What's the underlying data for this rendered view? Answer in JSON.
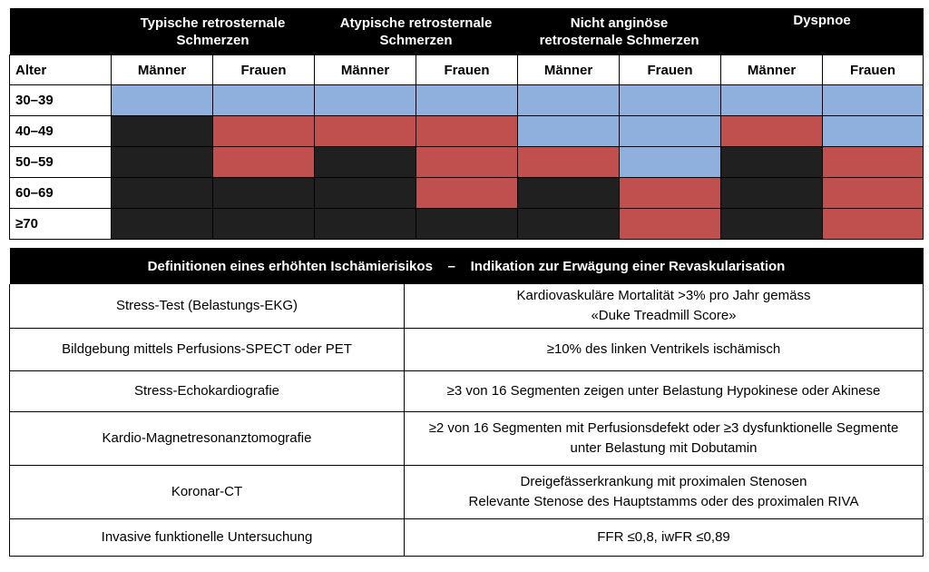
{
  "matrix": {
    "columns": [
      {
        "label_line1": "Typische retrosternale",
        "label_line2": "Schmerzen"
      },
      {
        "label_line1": "Atypische retrosternale",
        "label_line2": "Schmerzen"
      },
      {
        "label_line1": "Nicht anginöse",
        "label_line2": "retrosternale Schmerzen"
      },
      {
        "label_line1": "Dyspnoe",
        "label_line2": ""
      }
    ],
    "age_header": "Alter",
    "sex_labels": [
      "Männer",
      "Frauen",
      "Männer",
      "Frauen",
      "Männer",
      "Frauen",
      "Männer",
      "Frauen"
    ],
    "rows": [
      {
        "age": "30–39",
        "cells": [
          "blue",
          "blue",
          "blue",
          "blue",
          "blue",
          "blue",
          "blue",
          "blue"
        ]
      },
      {
        "age": "40–49",
        "cells": [
          "black",
          "red",
          "red",
          "red",
          "blue",
          "blue",
          "red",
          "blue"
        ]
      },
      {
        "age": "50–59",
        "cells": [
          "black",
          "red",
          "black",
          "red",
          "red",
          "blue",
          "black",
          "red"
        ]
      },
      {
        "age": "60–69",
        "cells": [
          "black",
          "black",
          "black",
          "red",
          "black",
          "red",
          "black",
          "red"
        ]
      },
      {
        "age": "≥70",
        "cells": [
          "black",
          "black",
          "black",
          "black",
          "black",
          "red",
          "black",
          "red"
        ]
      }
    ],
    "colors": {
      "blue": "#8fb0dd",
      "red": "#c0504d",
      "black": "#202020"
    }
  },
  "definitions": {
    "header": "Definitionen eines erhöhten Ischämierisikos    –    Indikation zur Erwägung einer Revaskularisation",
    "rows": [
      {
        "test": "Stress-Test (Belastungs-EKG)",
        "criteria": [
          "Kardiovaskuläre Mortalität >3% pro Jahr gemäss",
          "«Duke Treadmill Score»"
        ]
      },
      {
        "test": "Bildgebung mittels Perfusions-SPECT oder  PET",
        "criteria": [
          "≥10% des linken Ventrikels ischämisch"
        ]
      },
      {
        "test": "Stress-Echokardiografie",
        "criteria": [
          "≥3 von 16 Segmenten zeigen unter Belastung Hypokinese oder Akinese"
        ]
      },
      {
        "test": "Kardio-Magnetresonanztomografie",
        "criteria": [
          "≥2 von 16 Segmenten mit Perfusionsdefekt oder ≥3 dysfunktionelle Segmente",
          "unter Belastung mit Dobutamin"
        ]
      },
      {
        "test": "Koronar-CT",
        "criteria": [
          "Dreigefässerkrankung mit proximalen Stenosen",
          "Relevante Stenose des Hauptstamms oder des proximalen RIVA"
        ]
      },
      {
        "test": "Invasive funktionelle Untersuchung",
        "criteria": [
          "FFR ≤0,8, iwFR ≤0,89"
        ]
      }
    ]
  }
}
